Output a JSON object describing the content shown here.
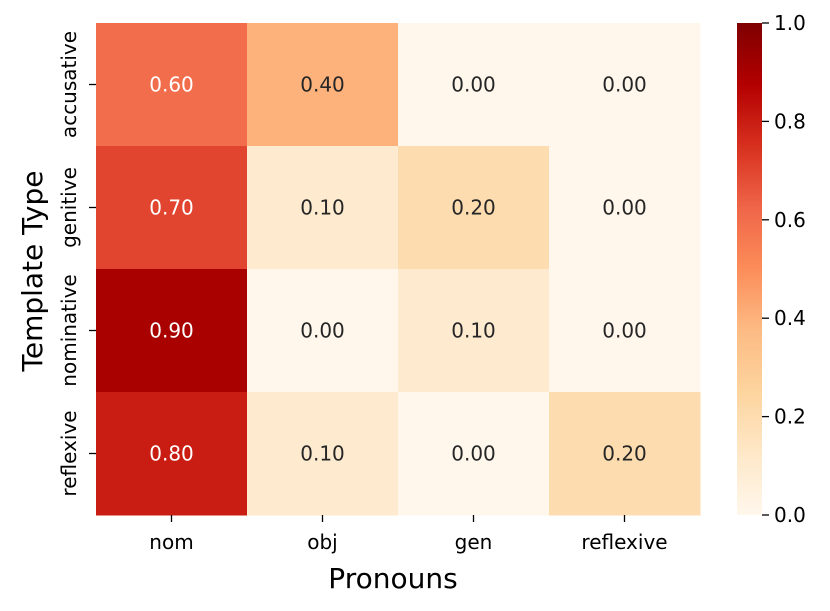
{
  "chart_data": {
    "type": "heatmap",
    "title": "",
    "xlabel": "Pronouns",
    "ylabel": "Template Type",
    "x_categories": [
      "nom",
      "obj",
      "gen",
      "reflexive"
    ],
    "y_categories": [
      "accusative",
      "genitive",
      "nominative",
      "reflexive"
    ],
    "values": [
      [
        0.6,
        0.4,
        0.0,
        0.0
      ],
      [
        0.7,
        0.1,
        0.2,
        0.0
      ],
      [
        0.9,
        0.0,
        0.1,
        0.0
      ],
      [
        0.8,
        0.1,
        0.0,
        0.2
      ]
    ],
    "value_labels": [
      [
        "0.60",
        "0.40",
        "0.00",
        "0.00"
      ],
      [
        "0.70",
        "0.10",
        "0.20",
        "0.00"
      ],
      [
        "0.90",
        "0.00",
        "0.10",
        "0.00"
      ],
      [
        "0.80",
        "0.10",
        "0.00",
        "0.20"
      ]
    ],
    "colorbar": {
      "range": [
        0.0,
        1.0
      ],
      "ticks": [
        0.0,
        0.2,
        0.4,
        0.6,
        0.8,
        1.0
      ],
      "tick_labels": [
        "0.0",
        "0.2",
        "0.4",
        "0.6",
        "0.8",
        "1.0"
      ],
      "colormap": "OrRd",
      "colormap_stops": [
        "#fff7ec",
        "#fee8c8",
        "#fdd49e",
        "#fdbb84",
        "#fc8d59",
        "#ef6548",
        "#d7301f",
        "#b30000",
        "#7f0000"
      ]
    },
    "grid": false,
    "legend": "colorbar-right"
  }
}
